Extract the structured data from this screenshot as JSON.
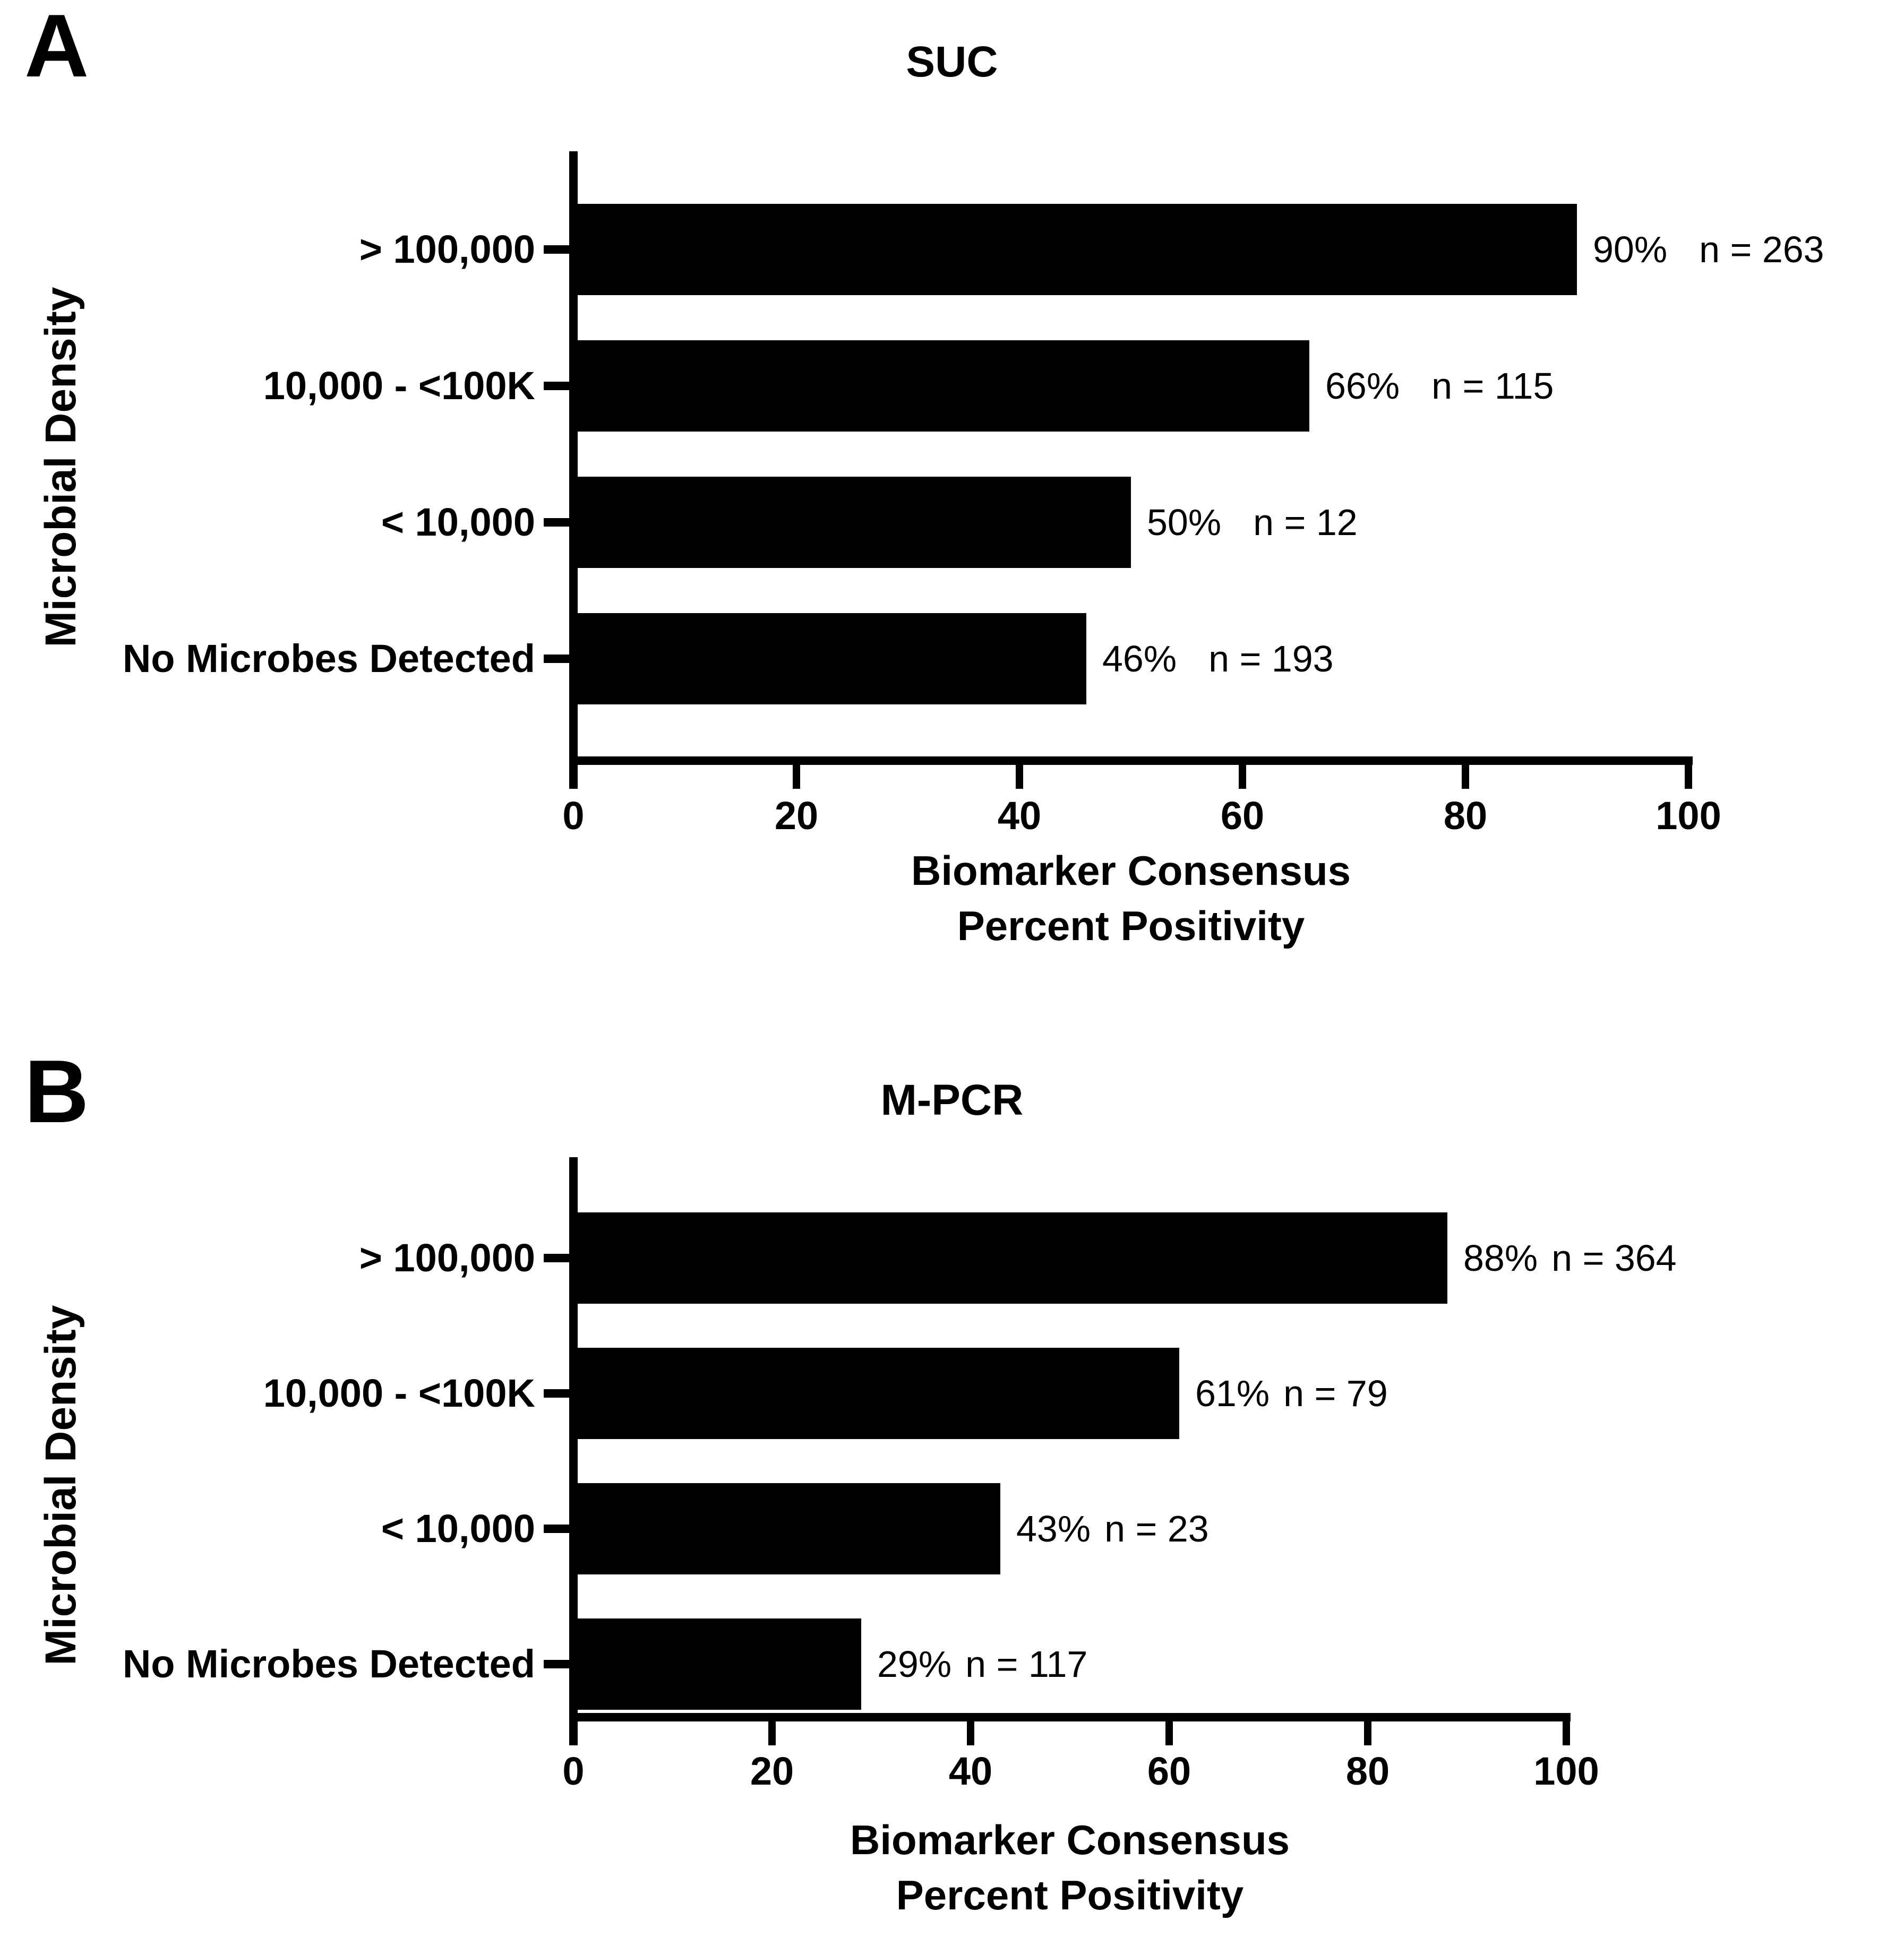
{
  "colors": {
    "bar": "#000000",
    "background": "#ffffff",
    "text": "#000000"
  },
  "chart_data": [
    {
      "type": "bar",
      "orientation": "horizontal",
      "panel_letter": "A",
      "title": "SUC",
      "ylabel": "Microbial Density",
      "xlabel": [
        "Biomarker Consensus",
        "Percent Positivity"
      ],
      "categories": [
        "> 100,000",
        "10,000 - <100K",
        "< 10,000",
        "No Microbes Detected"
      ],
      "values": [
        90,
        66,
        50,
        46
      ],
      "counts": [
        263,
        115,
        12,
        193
      ],
      "value_labels": [
        "90%",
        "66%",
        "50%",
        "46%"
      ],
      "count_labels": [
        "n = 263",
        "n = 115",
        "n = 12",
        "n = 193"
      ],
      "xticks": [
        0,
        20,
        40,
        60,
        80,
        100
      ],
      "xlim": [
        0,
        100
      ],
      "grid": false,
      "legend": "none",
      "bar_color": "#000000"
    },
    {
      "type": "bar",
      "orientation": "horizontal",
      "panel_letter": "B",
      "title": "M-PCR",
      "ylabel": "Microbial Density",
      "xlabel": [
        "Biomarker Consensus",
        "Percent Positivity"
      ],
      "categories": [
        "> 100,000",
        "10,000 - <100K",
        "< 10,000",
        "No Microbes Detected"
      ],
      "values": [
        88,
        61,
        43,
        29
      ],
      "counts": [
        364,
        79,
        23,
        117
      ],
      "value_labels": [
        "88%",
        "61%",
        "43%",
        "29%"
      ],
      "count_labels": [
        "n = 364",
        "n = 79",
        "n = 23",
        "n = 117"
      ],
      "xticks": [
        0,
        20,
        40,
        60,
        80,
        100
      ],
      "xlim": [
        0,
        100
      ],
      "grid": false,
      "legend": "none",
      "bar_color": "#000000"
    }
  ]
}
